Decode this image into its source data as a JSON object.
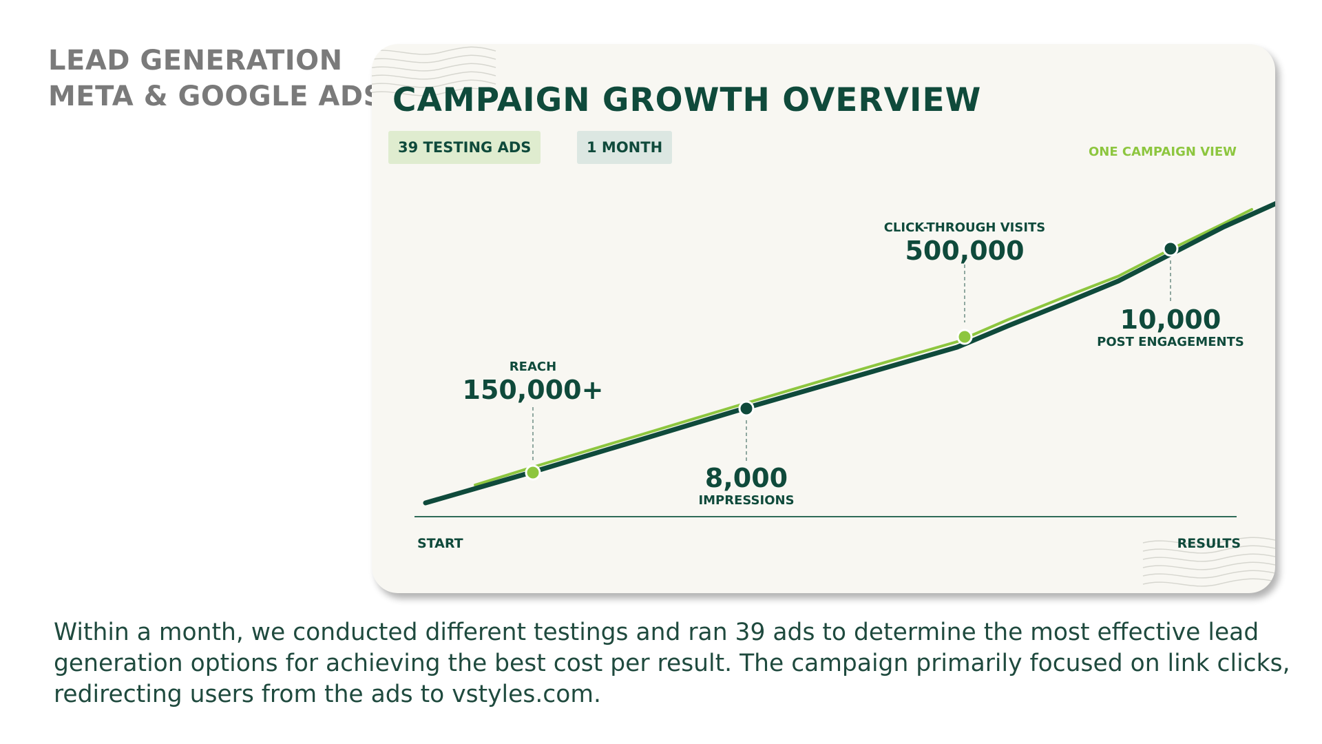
{
  "side_title": {
    "line1": "LEAD GENERATION",
    "line2": "META & GOOGLE ADS"
  },
  "card": {
    "title": "CAMPAIGN GROWTH OVERVIEW",
    "badges": [
      "39 TESTING ADS",
      "1 MONTH"
    ],
    "corner_note": "ONE CAMPAIGN VIEW"
  },
  "chart_data": {
    "type": "line",
    "title": "CAMPAIGN GROWTH OVERVIEW",
    "x_start_label": "START",
    "x_end_label": "RESULTS",
    "milestones": [
      {
        "value": "150,000+",
        "label": "REACH",
        "position": "above"
      },
      {
        "value": "8,000",
        "label": "IMPRESSIONS",
        "position": "below"
      },
      {
        "value": "500,000",
        "label": "CLICK-THROUGH VISITS",
        "position": "above"
      },
      {
        "value": "10,000",
        "label": "POST ENGAGEMENTS",
        "position": "below"
      }
    ],
    "series": [
      {
        "color": "#0f4a3b"
      },
      {
        "color": "#8dc63f"
      }
    ],
    "colors": {
      "primary": "#0f4a3b",
      "accent": "#8dc63f"
    }
  },
  "description": "Within a month, we conducted different testings and ran 39 ads to determine the most effective lead generation options for achieving the best cost per result. The campaign primarily focused on link clicks, redirecting users from the ads to vstyles.com."
}
